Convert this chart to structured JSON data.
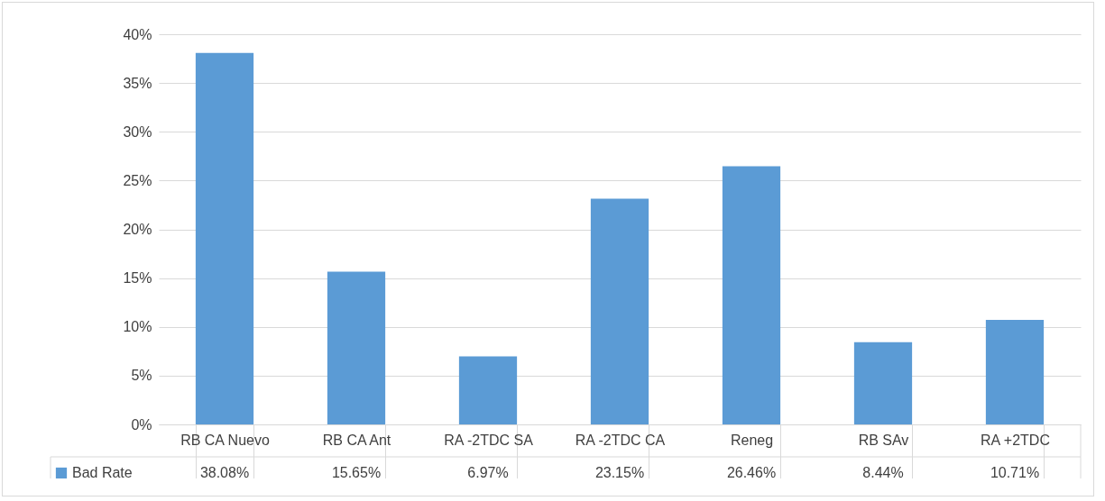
{
  "chart_data": {
    "type": "bar",
    "categories": [
      "RB CA Nuevo",
      "RB CA Ant",
      "RA -2TDC SA",
      "RA -2TDC CA",
      "Reneg",
      "RB SAv",
      "RA +2TDC"
    ],
    "series": [
      {
        "name": "Bad Rate",
        "color": "#5b9bd5",
        "values": [
          38.08,
          15.65,
          6.97,
          23.15,
          26.46,
          8.44,
          10.71
        ],
        "value_labels": [
          "38.08%",
          "15.65%",
          "6.97%",
          "23.15%",
          "26.46%",
          "8.44%",
          "10.71%"
        ]
      }
    ],
    "ylim": [
      0,
      40
    ],
    "yticks": [
      {
        "value": 0,
        "label": "0%"
      },
      {
        "value": 5,
        "label": "5%"
      },
      {
        "value": 10,
        "label": "10%"
      },
      {
        "value": 15,
        "label": "15%"
      },
      {
        "value": 20,
        "label": "20%"
      },
      {
        "value": 25,
        "label": "25%"
      },
      {
        "value": 30,
        "label": "30%"
      },
      {
        "value": 35,
        "label": "35%"
      },
      {
        "value": 40,
        "label": "40%"
      }
    ],
    "grid": "y",
    "legend": "bottom left"
  }
}
